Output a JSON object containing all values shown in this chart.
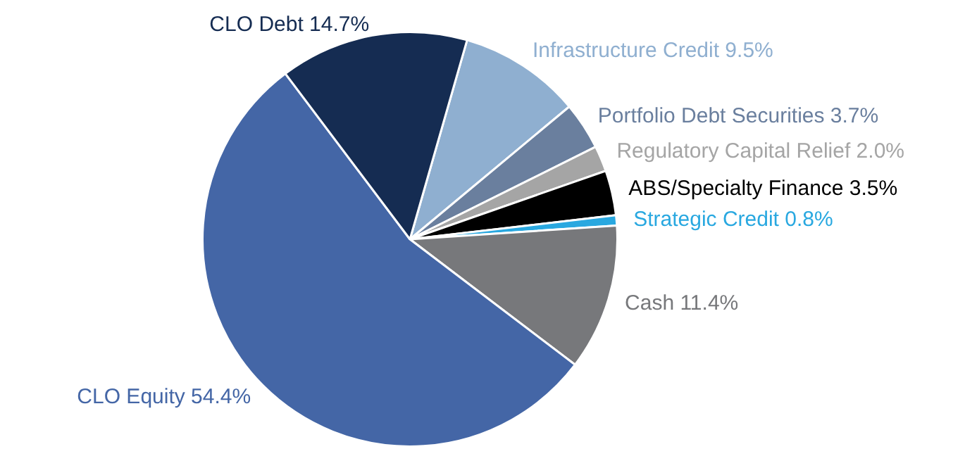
{
  "chart_data": {
    "type": "pie",
    "categories": [
      "Infrastructure Credit",
      "Portfolio Debt Securities",
      "Regulatory Capital Relief",
      "ABS/Specialty Finance",
      "Strategic Credit",
      "Cash",
      "CLO Equity",
      "CLO Debt"
    ],
    "values": [
      9.5,
      3.7,
      2.0,
      3.5,
      0.8,
      11.4,
      54.4,
      14.7
    ],
    "value_labels": [
      "9.5%",
      "3.7%",
      "2.0%",
      "3.5%",
      "0.8%",
      "11.4%",
      "54.4%",
      "14.7%"
    ],
    "colors": [
      "#8fafd0",
      "#6a7f9e",
      "#a5a5a5",
      "#000000",
      "#29a8e0",
      "#77787b",
      "#4466a6",
      "#152c52"
    ],
    "legend": false
  }
}
